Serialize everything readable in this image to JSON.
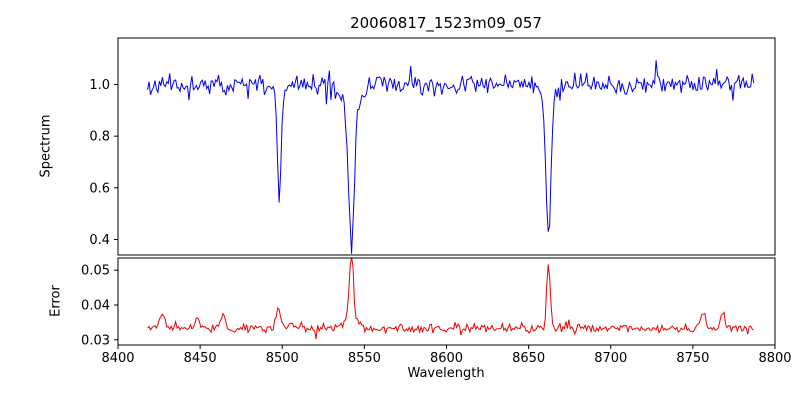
{
  "figure": {
    "background": "#ffffff"
  },
  "chart_data": {
    "type": "line",
    "title": "20060817_1523m09_057",
    "xlabel": "Wavelength",
    "xlim": [
      8400,
      8800
    ],
    "x_ticks": [
      {
        "v": 8400,
        "label": "8400"
      },
      {
        "v": 8450,
        "label": "8450"
      },
      {
        "v": 8500,
        "label": "8500"
      },
      {
        "v": 8550,
        "label": "8550"
      },
      {
        "v": 8600,
        "label": "8600"
      },
      {
        "v": 8650,
        "label": "8650"
      },
      {
        "v": 8700,
        "label": "8700"
      },
      {
        "v": 8750,
        "label": "8750"
      },
      {
        "v": 8800,
        "label": "8800"
      }
    ],
    "x_data_range": [
      8418,
      8787
    ],
    "x_step": 0.9,
    "grid": false,
    "legend": "none",
    "panels": [
      {
        "name": "spectrum",
        "ylabel": "Spectrum",
        "color": "#0000ee",
        "ylim": [
          0.34,
          1.18
        ],
        "y_ticks": [
          {
            "v": 0.4,
            "label": "0.4"
          },
          {
            "v": 0.6,
            "label": "0.6"
          },
          {
            "v": 0.8,
            "label": "0.8"
          },
          {
            "v": 1.0,
            "label": "1.0"
          }
        ],
        "baseline": 1.0,
        "noise_sigma": 0.018,
        "spike_prob": 0.02,
        "spike_scale": 2.2,
        "seed": 11,
        "features": [
          {
            "center": 8498.2,
            "amp": -0.4,
            "sigma": 1.1
          },
          {
            "center": 8498.2,
            "amp": -0.05,
            "sigma": 3.0
          },
          {
            "center": 8542.1,
            "amp": -0.52,
            "sigma": 1.7
          },
          {
            "center": 8542.1,
            "amp": -0.1,
            "sigma": 5.0
          },
          {
            "center": 8662.1,
            "amp": -0.52,
            "sigma": 1.5
          },
          {
            "center": 8662.1,
            "amp": -0.07,
            "sigma": 4.0
          }
        ]
      },
      {
        "name": "error",
        "ylabel": "Error",
        "color": "#ee0000",
        "ylim": [
          0.0285,
          0.0535
        ],
        "y_ticks": [
          {
            "v": 0.03,
            "label": "0.03"
          },
          {
            "v": 0.04,
            "label": "0.04"
          },
          {
            "v": 0.05,
            "label": "0.05"
          }
        ],
        "baseline": 0.0333,
        "noise_sigma": 0.0006,
        "spike_prob": 0.02,
        "spike_scale": 2.0,
        "seed": 5,
        "features": [
          {
            "center": 8427.0,
            "amp": 0.0042,
            "sigma": 1.4
          },
          {
            "center": 8448.0,
            "amp": 0.0028,
            "sigma": 1.2
          },
          {
            "center": 8464.0,
            "amp": 0.0038,
            "sigma": 1.3
          },
          {
            "center": 8497.5,
            "amp": 0.0058,
            "sigma": 1.4
          },
          {
            "center": 8505.0,
            "amp": 0.0022,
            "sigma": 1.2
          },
          {
            "center": 8542.1,
            "amp": 0.0185,
            "sigma": 1.2
          },
          {
            "center": 8542.1,
            "amp": 0.003,
            "sigma": 4.0
          },
          {
            "center": 8662.1,
            "amp": 0.0185,
            "sigma": 1.1
          },
          {
            "center": 8756.0,
            "amp": 0.0045,
            "sigma": 1.6
          },
          {
            "center": 8768.0,
            "amp": 0.004,
            "sigma": 1.5
          }
        ]
      }
    ]
  }
}
